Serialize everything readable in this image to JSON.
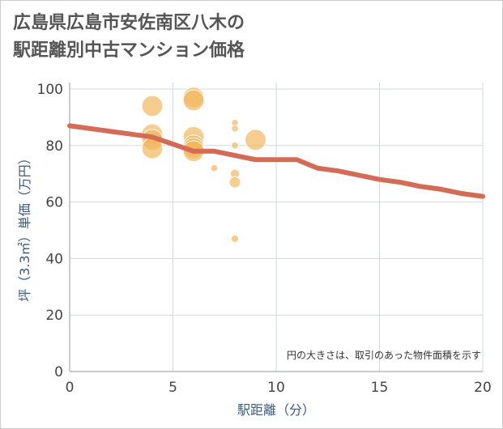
{
  "title_line1": "広島県広島市安佐南区八木の",
  "title_line2": "駅距離別中古マンション価格",
  "chart_data": {
    "type": "scatter",
    "title": "広島県広島市安佐南区八木の駅距離別中古マンション価格",
    "xlabel": "駅距離（分）",
    "ylabel": "坪（3.3㎡）単価（万円）",
    "xlim": [
      0,
      20
    ],
    "ylim": [
      0,
      100
    ],
    "xticks": [
      0,
      5,
      10,
      15,
      20
    ],
    "yticks": [
      0,
      20,
      40,
      60,
      80,
      100
    ],
    "grid": true,
    "note": "円の大きさは、取引のあった物件面積を示す",
    "colors": {
      "bubble": "#f2b55a",
      "line": "#d36b55",
      "grid": "#cfd8e3"
    },
    "points": [
      {
        "x": 4,
        "y": 94,
        "size": 3
      },
      {
        "x": 4,
        "y": 84,
        "size": 3
      },
      {
        "x": 4,
        "y": 82,
        "size": 3
      },
      {
        "x": 4,
        "y": 79,
        "size": 3
      },
      {
        "x": 6,
        "y": 97,
        "size": 3
      },
      {
        "x": 6,
        "y": 96,
        "size": 3
      },
      {
        "x": 6,
        "y": 83,
        "size": 3
      },
      {
        "x": 6,
        "y": 80,
        "size": 3
      },
      {
        "x": 6,
        "y": 79,
        "size": 3
      },
      {
        "x": 6,
        "y": 78,
        "size": 3
      },
      {
        "x": 7,
        "y": 72,
        "size": 0.4
      },
      {
        "x": 8,
        "y": 88,
        "size": 0.4
      },
      {
        "x": 8,
        "y": 86,
        "size": 0.4
      },
      {
        "x": 8,
        "y": 80,
        "size": 0.4
      },
      {
        "x": 8,
        "y": 70,
        "size": 0.8
      },
      {
        "x": 8,
        "y": 67,
        "size": 1.2
      },
      {
        "x": 8,
        "y": 47,
        "size": 0.5
      },
      {
        "x": 9,
        "y": 82,
        "size": 3
      }
    ],
    "trend": {
      "x": [
        0,
        1,
        2,
        3,
        4,
        5,
        6,
        7,
        8,
        9,
        10,
        11,
        12,
        13,
        14,
        15,
        16,
        17,
        18,
        19,
        20
      ],
      "y": [
        87,
        86,
        85,
        84,
        83,
        80.5,
        78,
        78,
        76.5,
        75,
        75,
        75,
        72,
        71,
        69.5,
        68,
        67,
        65.5,
        64.5,
        63,
        62
      ]
    }
  }
}
